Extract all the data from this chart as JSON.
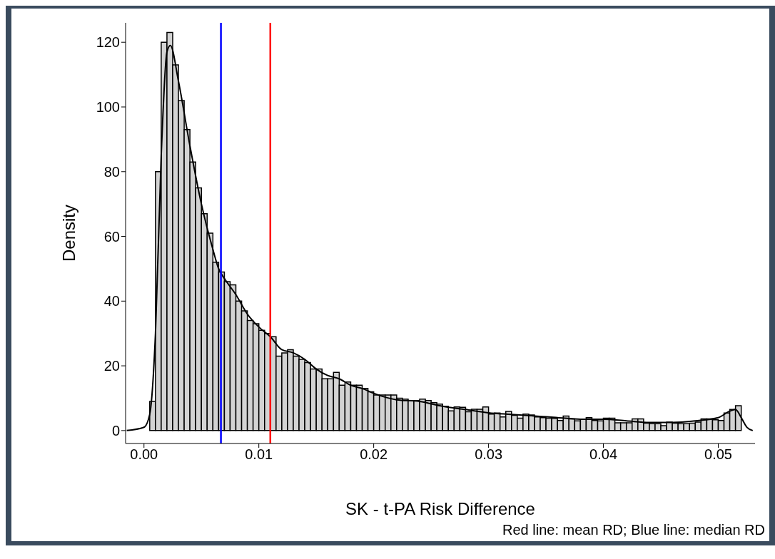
{
  "chart_data": {
    "type": "histogram",
    "xlabel": "SK - t-PA Risk Difference",
    "ylabel": "Density",
    "annotations": [
      "Red line: mean RD; Blue line: median RD"
    ],
    "color": "#d3d3d3",
    "bins": [
      0.0005,
      0.001,
      0.0015,
      0.002,
      0.0025,
      0.003,
      0.0035,
      0.004,
      0.0045,
      0.005,
      0.0055,
      0.006,
      0.0065,
      0.007,
      0.0075,
      0.008,
      0.0085,
      0.009,
      0.0095,
      0.01,
      0.0105,
      0.011,
      0.0115,
      0.012,
      0.0125,
      0.013,
      0.0135,
      0.014,
      0.0145,
      0.015,
      0.0155,
      0.016,
      0.0165,
      0.017,
      0.0175,
      0.018,
      0.0185,
      0.019,
      0.0195,
      0.02,
      0.0205,
      0.021,
      0.0215,
      0.022,
      0.0225,
      0.023,
      0.0235,
      0.024,
      0.0245,
      0.025,
      0.0255,
      0.026,
      0.0265,
      0.027,
      0.0275,
      0.028,
      0.0285,
      0.029,
      0.0295,
      0.03,
      0.0305,
      0.031,
      0.0315,
      0.032,
      0.0325,
      0.033,
      0.0335,
      0.034,
      0.0345,
      0.035,
      0.0355,
      0.036,
      0.0365,
      0.037,
      0.0375,
      0.038,
      0.0385,
      0.039,
      0.0395,
      0.04,
      0.0405,
      0.041,
      0.0415,
      0.042,
      0.0425,
      0.043,
      0.0435,
      0.044,
      0.0445,
      0.045,
      0.0455,
      0.046,
      0.0465,
      0.047,
      0.0475,
      0.048,
      0.0485,
      0.049,
      0.0495,
      0.05,
      0.0505,
      0.051,
      0.0515,
      0.052
    ],
    "values": [
      9,
      80,
      120,
      123,
      113,
      102,
      93,
      83,
      75,
      67,
      61,
      52,
      49,
      46,
      45,
      40,
      37,
      34,
      33,
      31,
      30,
      29,
      23,
      24,
      25,
      23,
      22,
      21,
      19,
      19,
      16,
      16,
      18,
      14,
      15,
      14,
      14,
      13,
      12,
      11,
      11,
      11,
      11,
      10,
      9.7,
      9.3,
      9.3,
      9.7,
      9.3,
      8.6,
      8.2,
      7.5,
      6.1,
      7.3,
      7.2,
      5.8,
      6.6,
      6.6,
      7.3,
      5.1,
      5.4,
      4.2,
      5.9,
      4.7,
      3.8,
      5.1,
      4.8,
      4.2,
      4.0,
      3.8,
      3.7,
      3.1,
      4.5,
      3.6,
      3.0,
      3.5,
      4.0,
      3.1,
      3.0,
      3.8,
      3.8,
      2.4,
      2.4,
      2.4,
      3.6,
      3.6,
      2.3,
      2.1,
      2.1,
      1.5,
      2.6,
      2.3,
      2.1,
      2.1,
      2.3,
      2.6,
      3.6,
      3.6,
      3.3,
      3.1,
      5.4,
      6.5,
      7.7
    ],
    "series": [
      {
        "type": "line",
        "color": "#000000",
        "x": [
          -0.0015,
          0.0,
          0.0005,
          0.001,
          0.0015,
          0.002,
          0.0023,
          0.003,
          0.004,
          0.005,
          0.006,
          0.0065,
          0.007,
          0.008,
          0.009,
          0.01,
          0.011,
          0.012,
          0.013,
          0.014,
          0.015,
          0.016,
          0.017,
          0.018,
          0.019,
          0.02,
          0.022,
          0.024,
          0.026,
          0.028,
          0.03,
          0.032,
          0.034,
          0.036,
          0.038,
          0.04,
          0.042,
          0.044,
          0.046,
          0.048,
          0.05,
          0.051,
          0.0515,
          0.052,
          0.0525,
          0.053
        ],
        "values": [
          0,
          1,
          5,
          30,
          85,
          117,
          119,
          108,
          88,
          70,
          56,
          50,
          47,
          42,
          36,
          32,
          29,
          25,
          24,
          22,
          19,
          17,
          16,
          14,
          13,
          11.5,
          9.5,
          9,
          7.5,
          6.5,
          5.5,
          5,
          4.5,
          4,
          3.5,
          3.5,
          3,
          2.5,
          2.5,
          3,
          4,
          6,
          6.5,
          4,
          1,
          0
        ]
      }
    ],
    "xlim": [
      -0.0016,
      0.0532
    ],
    "xticks": [
      {
        "value": 0,
        "label": "0.00"
      },
      {
        "value": 0.01,
        "label": "0.01"
      },
      {
        "value": 0.02,
        "label": "0.02"
      },
      {
        "value": 0.03,
        "label": "0.03"
      },
      {
        "value": 0.04,
        "label": "0.04"
      },
      {
        "value": 0.05,
        "label": "0.05"
      }
    ],
    "ylim": [
      -4,
      126
    ],
    "yticks": [
      0,
      20,
      40,
      60,
      80,
      100,
      120
    ],
    "ref_lines": [
      {
        "axis": "x",
        "value": 0.0067,
        "color": "#0000ff"
      },
      {
        "axis": "x",
        "value": 0.011,
        "color": "#ff0000"
      }
    ]
  }
}
